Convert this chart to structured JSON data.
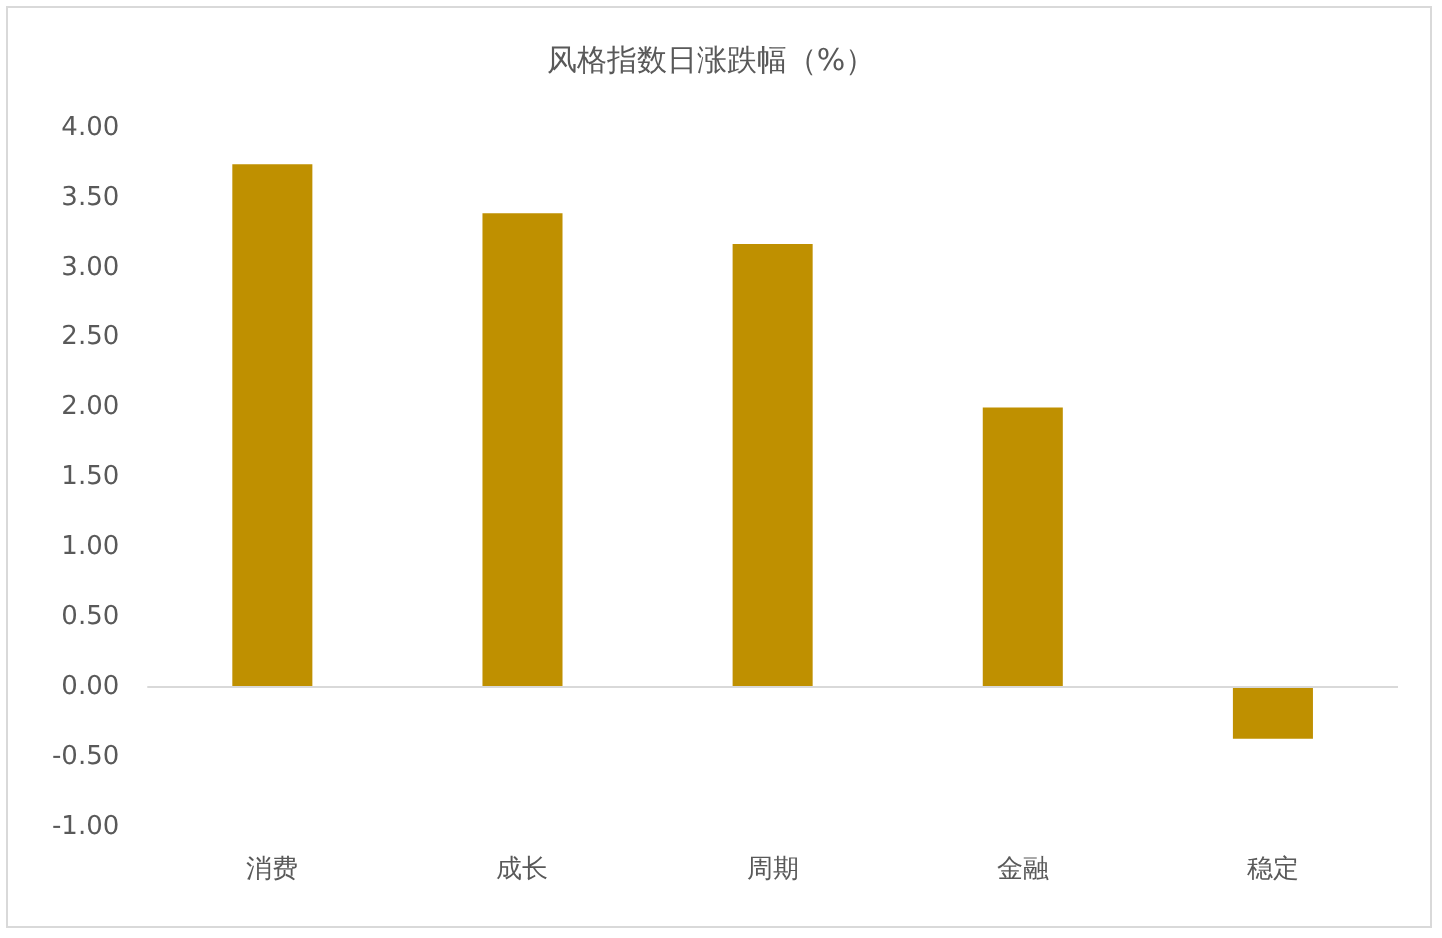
{
  "chart_data": {
    "type": "bar",
    "title": "风格指数日涨跌幅（%）",
    "categories": [
      "消费",
      "成长",
      "周期",
      "金融",
      "稳定"
    ],
    "values": [
      3.74,
      3.39,
      3.17,
      2.0,
      -0.37
    ],
    "color": "#bf9000",
    "ylim": [
      -1,
      4
    ],
    "yticks": [
      {
        "value": -1,
        "label": "-1.00"
      },
      {
        "value": -0.5,
        "label": "-0.50"
      },
      {
        "value": 0,
        "label": "0.00"
      },
      {
        "value": 0.5,
        "label": "0.50"
      },
      {
        "value": 1,
        "label": "1.00"
      },
      {
        "value": 1.5,
        "label": "1.50"
      },
      {
        "value": 2,
        "label": "2.00"
      },
      {
        "value": 2.5,
        "label": "2.50"
      },
      {
        "value": 3,
        "label": "3.00"
      },
      {
        "value": 3.5,
        "label": "3.50"
      },
      {
        "value": 4,
        "label": "4.00"
      }
    ],
    "ref_lines": [
      {
        "axis": "y",
        "value": 0,
        "color": "#d9d9d9"
      }
    ],
    "grid": false,
    "legend": false
  }
}
